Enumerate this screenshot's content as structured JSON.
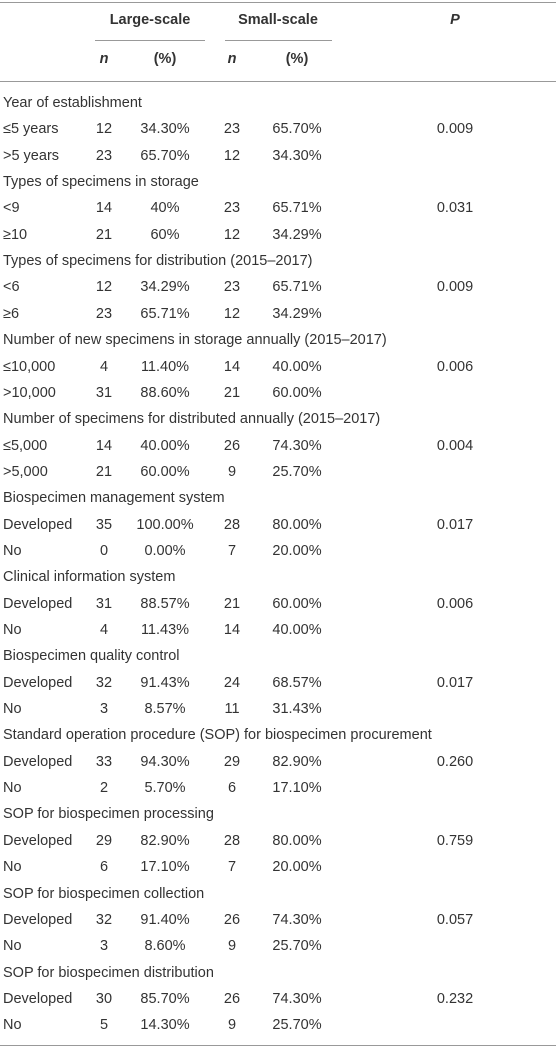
{
  "header": {
    "groups": [
      "Large-scale",
      "Small-scale"
    ],
    "p": "P",
    "sub": [
      "n",
      "(%)",
      "n",
      "(%)"
    ]
  },
  "sections": [
    {
      "title": "Year of establishment",
      "p": "0.009",
      "rows": [
        [
          "≤5 years",
          "12",
          "34.30%",
          "23",
          "65.70%"
        ],
        [
          ">5 years",
          "23",
          "65.70%",
          "12",
          "34.30%"
        ]
      ]
    },
    {
      "title": "Types of specimens in storage",
      "p": "0.031",
      "rows": [
        [
          "<9",
          "14",
          "40%",
          "23",
          "65.71%"
        ],
        [
          "≥10",
          "21",
          "60%",
          "12",
          "34.29%"
        ]
      ]
    },
    {
      "title": "Types of specimens for distribution (2015–2017)",
      "p": "0.009",
      "rows": [
        [
          "<6",
          "12",
          "34.29%",
          "23",
          "65.71%"
        ],
        [
          "≥6",
          "23",
          "65.71%",
          "12",
          "34.29%"
        ]
      ]
    },
    {
      "title": "Number of new specimens in storage annually (2015–2017)",
      "p": "0.006",
      "rows": [
        [
          "≤10,000",
          "4",
          "11.40%",
          "14",
          "40.00%"
        ],
        [
          ">10,000",
          "31",
          "88.60%",
          "21",
          "60.00%"
        ]
      ]
    },
    {
      "title": "Number of specimens for distributed annually (2015–2017)",
      "p": "0.004",
      "rows": [
        [
          "≤5,000",
          "14",
          "40.00%",
          "26",
          "74.30%"
        ],
        [
          ">5,000",
          "21",
          "60.00%",
          "9",
          "25.70%"
        ]
      ]
    },
    {
      "title": "Biospecimen management system",
      "p": "0.017",
      "rows": [
        [
          "Developed",
          "35",
          "100.00%",
          "28",
          "80.00%"
        ],
        [
          "No",
          "0",
          "0.00%",
          "7",
          "20.00%"
        ]
      ]
    },
    {
      "title": "Clinical information system",
      "p": "0.006",
      "rows": [
        [
          "Developed",
          "31",
          "88.57%",
          "21",
          "60.00%"
        ],
        [
          "No",
          "4",
          "11.43%",
          "14",
          "40.00%"
        ]
      ]
    },
    {
      "title": "Biospecimen quality control",
      "p": "0.017",
      "rows": [
        [
          "Developed",
          "32",
          "91.43%",
          "24",
          "68.57%"
        ],
        [
          "No",
          "3",
          "8.57%",
          "11",
          "31.43%"
        ]
      ]
    },
    {
      "title": "Standard operation procedure (SOP) for biospecimen procurement",
      "p": "0.260",
      "rows": [
        [
          "Developed",
          "33",
          "94.30%",
          "29",
          "82.90%"
        ],
        [
          "No",
          "2",
          "5.70%",
          "6",
          "17.10%"
        ]
      ]
    },
    {
      "title": "SOP for biospecimen processing",
      "p": "0.759",
      "rows": [
        [
          "Developed",
          "29",
          "82.90%",
          "28",
          "80.00%"
        ],
        [
          "No",
          "6",
          "17.10%",
          "7",
          "20.00%"
        ]
      ]
    },
    {
      "title": "SOP for biospecimen collection",
      "p": "0.057",
      "rows": [
        [
          "Developed",
          "32",
          "91.40%",
          "26",
          "74.30%"
        ],
        [
          "No",
          "3",
          "8.60%",
          "9",
          "25.70%"
        ]
      ]
    },
    {
      "title": "SOP for biospecimen distribution",
      "p": "0.232",
      "rows": [
        [
          "Developed",
          "30",
          "85.70%",
          "26",
          "74.30%"
        ],
        [
          "No",
          "5",
          "14.30%",
          "9",
          "25.70%"
        ]
      ]
    }
  ]
}
